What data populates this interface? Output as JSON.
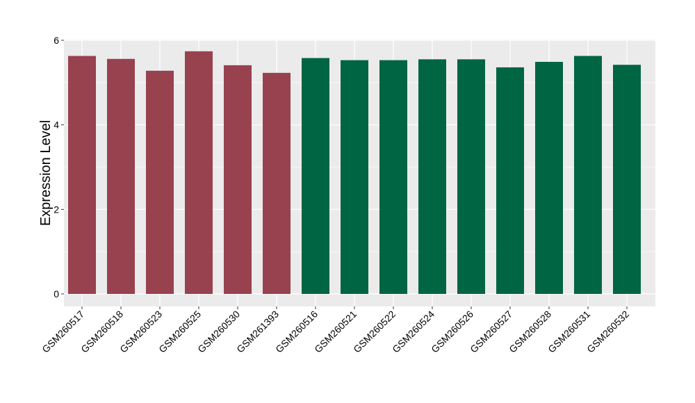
{
  "chart_data": {
    "type": "bar",
    "title": "",
    "xlabel": "",
    "ylabel": "Expression Level",
    "ylim": [
      0,
      6
    ],
    "yticks": [
      0,
      2,
      4,
      6
    ],
    "grid": true,
    "background": "#EBEBEB",
    "grid_color": "#FFFFFF",
    "categories": [
      "GSM260517",
      "GSM260518",
      "GSM260523",
      "GSM260525",
      "GSM260530",
      "GSM261393",
      "GSM260516",
      "GSM260521",
      "GSM260522",
      "GSM260524",
      "GSM260526",
      "GSM260527",
      "GSM260528",
      "GSM260531",
      "GSM260532"
    ],
    "values": [
      5.63,
      5.56,
      5.28,
      5.74,
      5.41,
      5.23,
      5.58,
      5.53,
      5.53,
      5.55,
      5.55,
      5.36,
      5.49,
      5.63,
      5.42
    ],
    "bar_colors": [
      "#98414F",
      "#98414F",
      "#98414F",
      "#98414F",
      "#98414F",
      "#98414F",
      "#006542",
      "#006542",
      "#006542",
      "#006542",
      "#006542",
      "#006542",
      "#006542",
      "#006542",
      "#006542"
    ]
  }
}
